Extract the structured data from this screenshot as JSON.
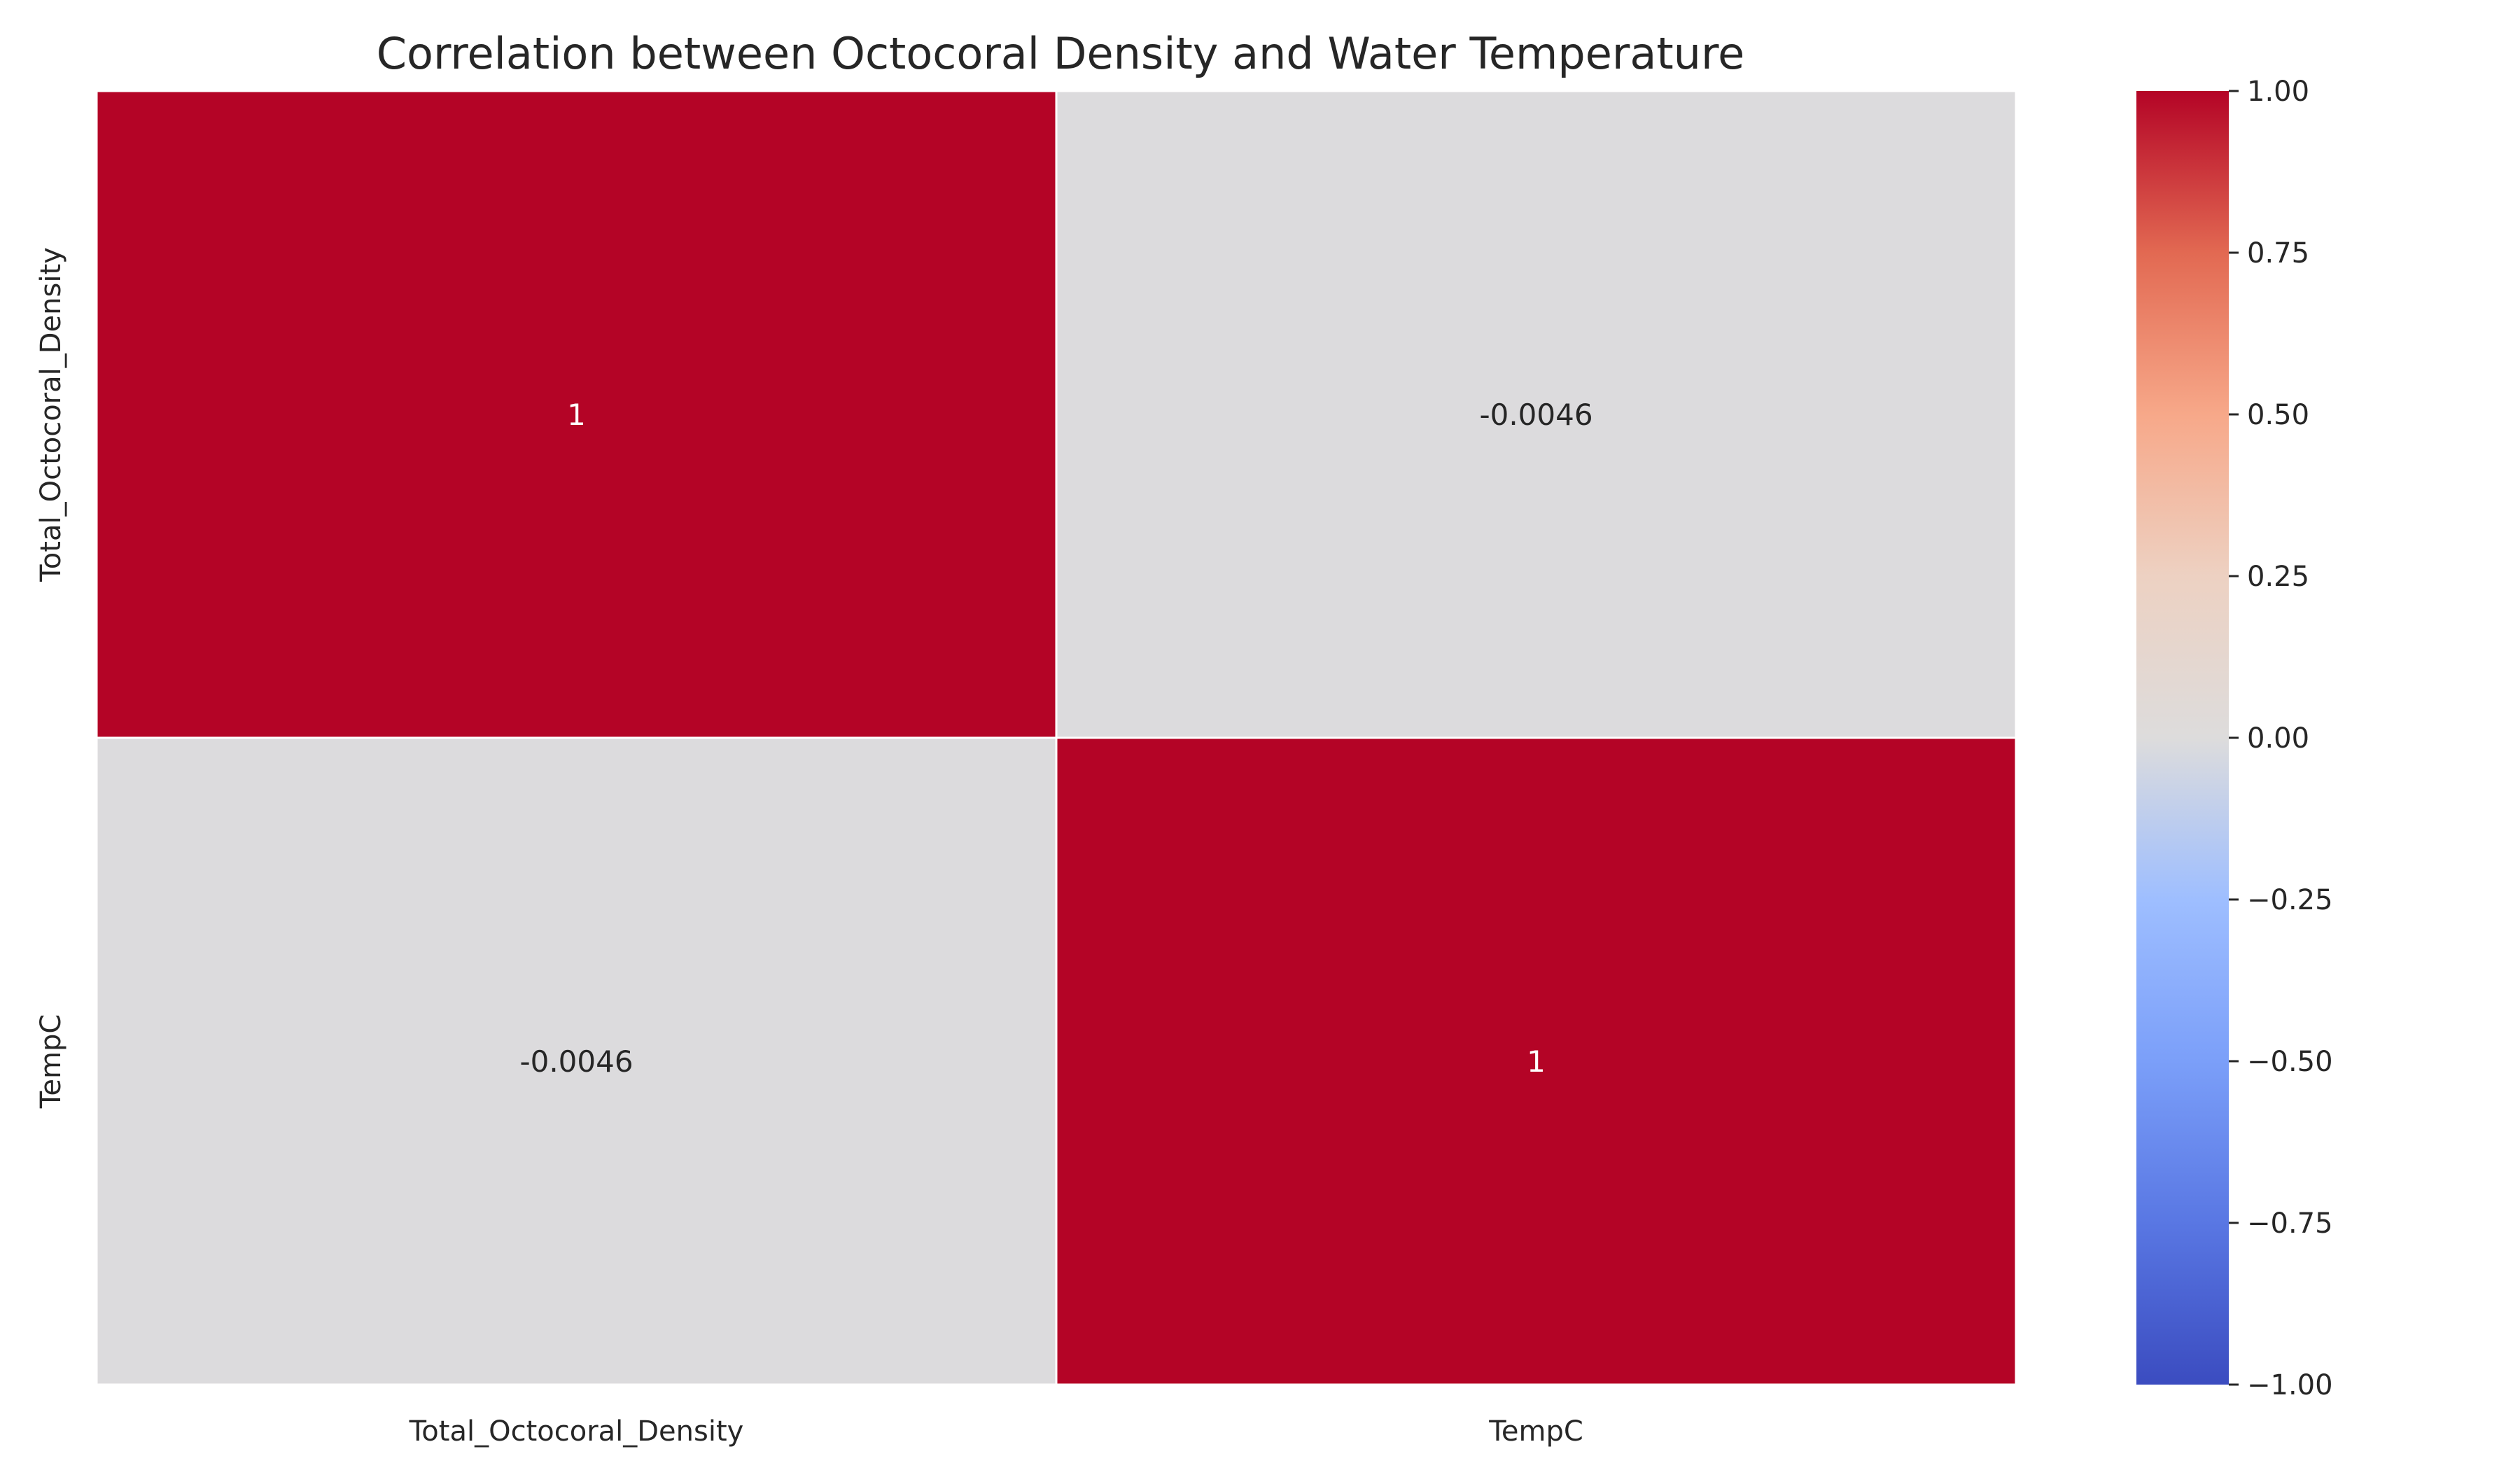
{
  "chart_data": {
    "type": "heatmap",
    "title": "Correlation between Octocoral Density and Water Temperature",
    "x_categories": [
      "Total_Octocoral_Density",
      "TempC"
    ],
    "y_categories": [
      "Total_Octocoral_Density",
      "TempC"
    ],
    "values": [
      [
        1,
        -0.0046
      ],
      [
        -0.0046,
        1
      ]
    ],
    "cell_labels": [
      [
        "1",
        "-0.0046"
      ],
      [
        "-0.0046",
        "1"
      ]
    ],
    "colormap": "coolwarm",
    "vmin": -1,
    "vmax": 1,
    "colorbar_ticks": [
      1.0,
      0.75,
      0.5,
      0.25,
      0.0,
      -0.25,
      -0.5,
      -0.75,
      -1.0
    ],
    "colorbar_tick_labels": [
      "1.00",
      "0.75",
      "0.50",
      "0.25",
      "0.00",
      "−0.25",
      "−0.50",
      "−0.75",
      "−1.00"
    ],
    "colors": {
      "high": "#b40426",
      "neutral": "#dddcdc",
      "low": "#3b4cc0",
      "cell_border": "#ffffff",
      "text_dark": "#262626",
      "text_light": "#ffffff"
    }
  }
}
